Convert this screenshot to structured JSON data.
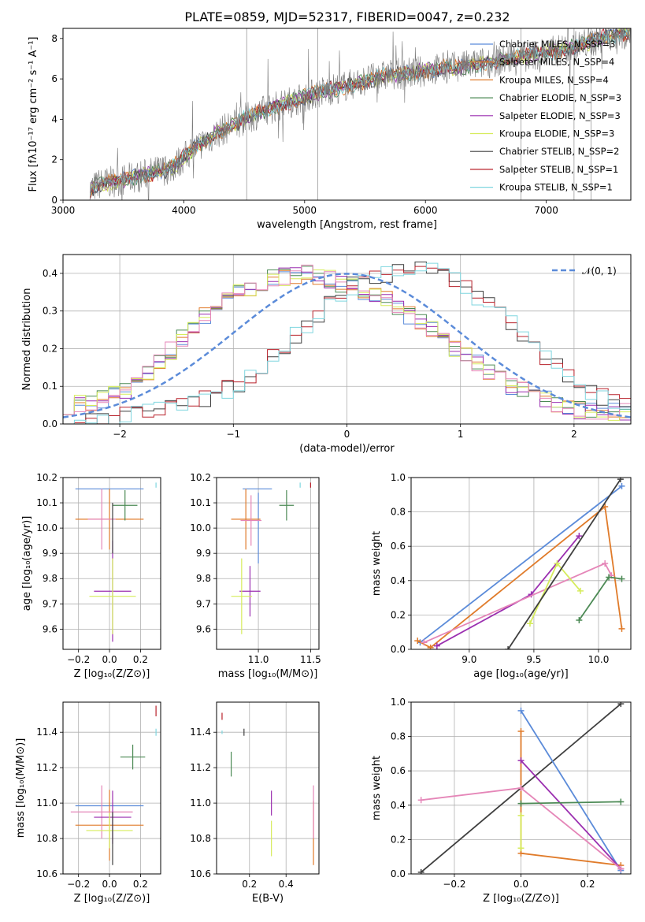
{
  "title": "PLATE=0859, MJD=52317, FIBERID=0047, z=0.232",
  "colors": {
    "chabrier_miles": "#5b8bd9",
    "salpeter_miles": "#e07b2a",
    "kroupa_miles": "#e07b2a",
    "chabrier_elodie": "#4c8a55",
    "salpeter_elodie": "#9b2fb0",
    "kroupa_elodie": "#d6ec5c",
    "chabrier_stelib": "#3f3f3f",
    "salpeter_stelib": "#b8202a",
    "kroupa_stelib": "#7fd6df",
    "normal": "#5b8bd9",
    "pink": "#e586b8",
    "data": "#7a7a7a"
  },
  "chart_data": [
    {
      "id": "spectrum",
      "type": "line",
      "title": "PLATE=0859, MJD=52317, FIBERID=0047, z=0.232",
      "xlabel": "wavelength [Angstrom, rest frame]",
      "ylabel": "Flux [fλ10⁻¹⁷ erg cm⁻² s⁻¹ A⁻¹]",
      "xlim": [
        3000,
        7700
      ],
      "ylim": [
        0,
        8.5
      ],
      "xticks": [
        "3000",
        "4000",
        "5000",
        "6000",
        "7000"
      ],
      "yticks": [
        "0",
        "2",
        "4",
        "6",
        "8"
      ],
      "legend_position": "right",
      "legend": [
        "Chabrier MILES, N_SSP=3",
        "Salpeter MILES, N_SSP=4",
        "Kroupa MILES, N_SSP=4",
        "Chabrier ELODIE, N_SSP=3",
        "Salpeter ELODIE, N_SSP=3",
        "Kroupa ELODIE, N_SSP=3",
        "Chabrier STELIB, N_SSP=2",
        "Salpeter STELIB, N_SSP=1",
        "Kroupa STELIB, N_SSP=1"
      ],
      "data_trend": {
        "x": [
          3220,
          3300,
          3500,
          3700,
          3900,
          4100,
          4300,
          4500,
          4700,
          4900,
          5100,
          5300,
          5500,
          5700,
          5900,
          6100,
          6300,
          6500,
          6700,
          6900,
          7100,
          7300,
          7500,
          7700
        ],
        "y": [
          0.5,
          0.8,
          1.0,
          1.3,
          1.6,
          2.6,
          3.4,
          4.0,
          4.5,
          4.9,
          5.3,
          5.6,
          5.9,
          6.2,
          6.3,
          6.5,
          6.6,
          6.8,
          7.0,
          7.2,
          7.4,
          7.7,
          8.1,
          8.3
        ]
      }
    },
    {
      "id": "residual-histogram",
      "type": "line",
      "xlabel": "(data-model)/error",
      "ylabel": "Normed distribution",
      "xlim": [
        -2.5,
        2.5
      ],
      "ylim": [
        0,
        0.45
      ],
      "xticks": [
        "−2",
        "−1",
        "0",
        "1",
        "2"
      ],
      "yticks": [
        "0.0",
        "0.1",
        "0.2",
        "0.3",
        "0.4"
      ],
      "legend": [
        "𝒩(0, 1)"
      ],
      "legend_position": "top-right",
      "normal_curve": {
        "mean": 0,
        "sigma": 1
      },
      "groups": {
        "narrow_left": {
          "x": [
            -2.4,
            -2.2,
            -2.0,
            -1.8,
            -1.6,
            -1.4,
            -1.2,
            -1.0,
            -0.8,
            -0.6,
            -0.4,
            -0.2,
            0.0,
            0.2,
            0.4,
            0.6,
            0.8,
            1.0,
            1.2,
            1.4,
            1.6,
            1.8,
            2.0,
            2.2,
            2.4
          ],
          "y": [
            0.05,
            0.06,
            0.08,
            0.12,
            0.18,
            0.24,
            0.3,
            0.34,
            0.37,
            0.39,
            0.4,
            0.39,
            0.37,
            0.35,
            0.32,
            0.28,
            0.24,
            0.19,
            0.15,
            0.11,
            0.08,
            0.06,
            0.04,
            0.03,
            0.03
          ]
        },
        "shifted_right": {
          "x": [
            -2.4,
            -2.2,
            -2.0,
            -1.8,
            -1.6,
            -1.4,
            -1.2,
            -1.0,
            -0.8,
            -0.6,
            -0.4,
            -0.2,
            0.0,
            0.2,
            0.4,
            0.6,
            0.8,
            1.0,
            1.2,
            1.4,
            1.6,
            1.8,
            2.0,
            2.2,
            2.4
          ],
          "y": [
            0.01,
            0.01,
            0.02,
            0.03,
            0.04,
            0.05,
            0.07,
            0.1,
            0.14,
            0.19,
            0.25,
            0.31,
            0.36,
            0.39,
            0.4,
            0.41,
            0.4,
            0.37,
            0.33,
            0.28,
            0.22,
            0.17,
            0.12,
            0.08,
            0.05
          ]
        }
      }
    },
    {
      "id": "age-vs-z",
      "type": "scatter",
      "xlabel": "Z [log₁₀(Z/Z⊙)]",
      "ylabel": "age  [log₁₀(age/yr)]",
      "xlim": [
        -0.3,
        0.33
      ],
      "ylim": [
        9.52,
        10.2
      ],
      "xticks": [
        "−0.2",
        "0.0",
        "0.2"
      ],
      "yticks": [
        "9.6",
        "9.7",
        "9.8",
        "9.9",
        "10.0",
        "10.1",
        "10.2"
      ],
      "points": [
        {
          "series": "chabrier_miles",
          "x": 0.0,
          "y": 10.155,
          "xerr": 0.22,
          "yerr": 0.0
        },
        {
          "series": "salpeter_miles",
          "x": 0.0,
          "y": 10.035,
          "xerr": 0.22,
          "yerr": 0.12
        },
        {
          "series": "chabrier_elodie",
          "x": 0.1,
          "y": 10.09,
          "xerr": 0.08,
          "yerr": 0.06
        },
        {
          "series": "pink",
          "x": -0.05,
          "y": 10.035,
          "xerr": 0.09,
          "yerr": 0.12
        },
        {
          "series": "salpeter_elodie",
          "x": 0.02,
          "y": 9.75,
          "xerr": 0.12,
          "yerr": 0.2
        },
        {
          "series": "kroupa_elodie",
          "x": 0.02,
          "y": 9.73,
          "xerr": 0.15,
          "yerr": 0.15
        },
        {
          "series": "chabrier_stelib",
          "x": 0.02,
          "y": 10.0,
          "xerr": 0.0,
          "yerr": 0.1
        },
        {
          "series": "kroupa_stelib",
          "x": 0.3,
          "y": 10.17,
          "xerr": 0.0,
          "yerr": 0.01
        }
      ]
    },
    {
      "id": "age-vs-mass",
      "type": "scatter",
      "xlabel": "mass [log₁₀(M/M⊙)]",
      "xlim": [
        10.6,
        11.58
      ],
      "ylim": [
        9.52,
        10.2
      ],
      "xticks": [
        "11.0",
        "11.5"
      ],
      "yticks": [
        "9.6",
        "9.7",
        "9.8",
        "9.9",
        "10.0",
        "10.1",
        "10.2"
      ],
      "points": [
        {
          "series": "chabrier_miles",
          "x": 10.99,
          "y": 10.155,
          "xerr": 0.14,
          "yerr": 0.0
        },
        {
          "series": "chabrier_miles",
          "x": 11.0,
          "y": 10.0,
          "xerr": 0.0,
          "yerr": 0.14
        },
        {
          "series": "salpeter_miles",
          "x": 10.88,
          "y": 10.035,
          "xerr": 0.14,
          "yerr": 0.12
        },
        {
          "series": "pink",
          "x": 10.93,
          "y": 10.03,
          "xerr": 0.1,
          "yerr": 0.1
        },
        {
          "series": "chabrier_elodie",
          "x": 11.27,
          "y": 10.09,
          "xerr": 0.07,
          "yerr": 0.06
        },
        {
          "series": "salpeter_elodie",
          "x": 10.92,
          "y": 9.75,
          "xerr": 0.1,
          "yerr": 0.1
        },
        {
          "series": "kroupa_elodie",
          "x": 10.84,
          "y": 9.73,
          "xerr": 0.1,
          "yerr": 0.15
        },
        {
          "series": "kroupa_stelib",
          "x": 11.4,
          "y": 10.17,
          "xerr": 0.0,
          "yerr": 0.01
        },
        {
          "series": "salpeter_stelib",
          "x": 11.5,
          "y": 10.17,
          "xerr": 0.0,
          "yerr": 0.01
        }
      ]
    },
    {
      "id": "weight-vs-age",
      "type": "line",
      "xlabel": "age  [log₁₀(age/yr)]",
      "ylabel": "mass weight",
      "xlim": [
        8.55,
        10.25
      ],
      "ylim": [
        0,
        1.0
      ],
      "xticks": [
        "9.0",
        "9.5",
        "10.0"
      ],
      "yticks": [
        "0.0",
        "0.2",
        "0.4",
        "0.6",
        "0.8",
        "1.0"
      ],
      "series": [
        {
          "color": "chabrier_miles",
          "x": [
            8.62,
            10.18
          ],
          "y": [
            0.04,
            0.95
          ]
        },
        {
          "color": "salpeter_miles",
          "x": [
            8.6,
            8.7,
            10.05,
            10.18
          ],
          "y": [
            0.05,
            0.01,
            0.83,
            0.12
          ]
        },
        {
          "color": "salpeter_elodie",
          "x": [
            8.75,
            9.48,
            9.85
          ],
          "y": [
            0.02,
            0.32,
            0.66
          ]
        },
        {
          "color": "pink",
          "x": [
            8.65,
            10.05,
            10.1
          ],
          "y": [
            0.04,
            0.5,
            0.43
          ]
        },
        {
          "color": "kroupa_elodie",
          "x": [
            9.47,
            9.68,
            9.86
          ],
          "y": [
            0.15,
            0.5,
            0.34
          ]
        },
        {
          "color": "chabrier_elodie",
          "x": [
            9.85,
            10.08,
            10.18
          ],
          "y": [
            0.17,
            0.42,
            0.41
          ]
        },
        {
          "color": "chabrier_stelib",
          "x": [
            9.3,
            10.17
          ],
          "y": [
            0.0,
            0.99
          ]
        }
      ]
    },
    {
      "id": "mass-vs-z",
      "type": "scatter",
      "xlabel": "Z [log₁₀(Z/Z⊙)]",
      "ylabel": "mass [log₁₀(M/M⊙)]",
      "xlim": [
        -0.3,
        0.33
      ],
      "ylim": [
        10.6,
        11.57
      ],
      "xticks": [
        "−0.2",
        "0.0",
        "0.2"
      ],
      "yticks": [
        "10.6",
        "10.8",
        "11.0",
        "11.2",
        "11.4"
      ],
      "points": [
        {
          "series": "chabrier_miles",
          "x": 0.0,
          "y": 10.985,
          "xerr": 0.22,
          "yerr": 0.0
        },
        {
          "series": "salpeter_miles",
          "x": 0.0,
          "y": 10.875,
          "xerr": 0.22,
          "yerr": 0.2
        },
        {
          "series": "pink",
          "x": -0.05,
          "y": 10.95,
          "xerr": 0.2,
          "yerr": 0.15
        },
        {
          "series": "salpeter_elodie",
          "x": 0.02,
          "y": 10.92,
          "xerr": 0.12,
          "yerr": 0.15
        },
        {
          "series": "kroupa_elodie",
          "x": 0.0,
          "y": 10.845,
          "xerr": 0.15,
          "yerr": 0.1
        },
        {
          "series": "chabrier_elodie",
          "x": 0.15,
          "y": 11.26,
          "xerr": 0.08,
          "yerr": 0.07
        },
        {
          "series": "chabrier_stelib",
          "x": 0.02,
          "y": 10.8,
          "xerr": 0.0,
          "yerr": 0.15
        },
        {
          "series": "kroupa_stelib",
          "x": 0.3,
          "y": 11.4,
          "xerr": 0.0,
          "yerr": 0.02
        },
        {
          "series": "salpeter_stelib",
          "x": 0.3,
          "y": 11.52,
          "xerr": 0.0,
          "yerr": 0.03
        }
      ]
    },
    {
      "id": "mass-vs-ebv",
      "type": "scatter",
      "xlabel": "E(B-V)",
      "xlim": [
        0.02,
        0.58
      ],
      "ylim": [
        10.6,
        11.57
      ],
      "xticks": [
        "0.2",
        "0.4"
      ],
      "yticks": [
        "10.6",
        "10.8",
        "11.0",
        "11.2",
        "11.4"
      ],
      "points": [
        {
          "series": "salpeter_stelib",
          "x": 0.05,
          "y": 11.49,
          "xerr": 0.0,
          "yerr": 0.02
        },
        {
          "series": "kroupa_stelib",
          "x": 0.05,
          "y": 11.4,
          "xerr": 0.0,
          "yerr": 0.01
        },
        {
          "series": "chabrier_elodie",
          "x": 0.1,
          "y": 11.22,
          "xerr": 0.0,
          "yerr": 0.07
        },
        {
          "series": "chabrier_stelib",
          "x": 0.17,
          "y": 11.4,
          "xerr": 0.0,
          "yerr": 0.02
        },
        {
          "series": "salpeter_elodie",
          "x": 0.32,
          "y": 11.0,
          "xerr": 0.0,
          "yerr": 0.07
        },
        {
          "series": "kroupa_elodie",
          "x": 0.32,
          "y": 10.8,
          "xerr": 0.0,
          "yerr": 0.1
        },
        {
          "series": "salpeter_miles",
          "x": 0.55,
          "y": 10.83,
          "xerr": 0.0,
          "yerr": 0.18
        },
        {
          "series": "pink",
          "x": 0.55,
          "y": 10.95,
          "xerr": 0.0,
          "yerr": 0.15
        }
      ]
    },
    {
      "id": "weight-vs-z",
      "type": "line",
      "xlabel": "Z [log₁₀(Z/Z⊙)]",
      "ylabel": "mass weight",
      "xlim": [
        -0.33,
        0.33
      ],
      "ylim": [
        0,
        1.0
      ],
      "xticks": [
        "−0.2",
        "0.0",
        "0.2"
      ],
      "yticks": [
        "0.0",
        "0.2",
        "0.4",
        "0.6",
        "0.8",
        "1.0"
      ],
      "series": [
        {
          "color": "chabrier_stelib",
          "x": [
            -0.3,
            0.3
          ],
          "y": [
            0.01,
            0.99
          ]
        },
        {
          "color": "chabrier_miles",
          "x": [
            0.0,
            0.3
          ],
          "y": [
            0.95,
            0.02
          ]
        },
        {
          "color": "salpeter_miles",
          "x": [
            0.0,
            0.0,
            0.3
          ],
          "y": [
            0.83,
            0.12,
            0.05
          ]
        },
        {
          "color": "salpeter_elodie",
          "x": [
            0.0,
            0.3
          ],
          "y": [
            0.66,
            0.03
          ]
        },
        {
          "color": "pink",
          "x": [
            -0.3,
            0.0,
            0.3
          ],
          "y": [
            0.43,
            0.5,
            0.03
          ]
        },
        {
          "color": "chabrier_elodie",
          "x": [
            0.0,
            0.3
          ],
          "y": [
            0.41,
            0.42
          ]
        },
        {
          "color": "kroupa_elodie",
          "x": [
            0.0,
            0.0
          ],
          "y": [
            0.15,
            0.34
          ]
        }
      ]
    }
  ]
}
